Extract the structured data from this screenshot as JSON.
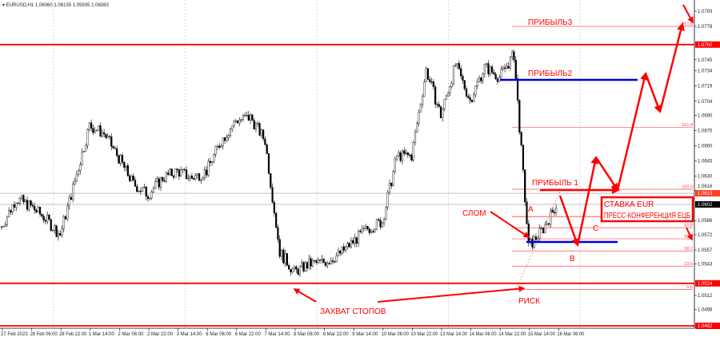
{
  "header": {
    "symbol": "EURUSD,H1",
    "ohlc": "1.06060 1.06135 1.05935 1.06083"
  },
  "colors": {
    "bull": "#ffffff",
    "bear": "#000000",
    "annotation": "#ff0000",
    "target_line": "#0000dd",
    "fib": "#ff5050",
    "grid": "#c0c0c0"
  },
  "chart_data": {
    "type": "candlestick",
    "title": "EURUSD,H1",
    "timeframe": "H1",
    "ylim": [
      1.0482,
      1.0793
    ],
    "grid": true,
    "y_ticks": [
      "1.0793",
      "1.0778",
      "1.0745",
      "1.0734",
      "1.0719",
      "1.0704",
      "1.0690",
      "1.0675",
      "1.0660",
      "1.0645",
      "1.0630",
      "1.0616",
      "1.0586",
      "1.0572",
      "1.0557",
      "1.0543",
      "1.0512",
      "1.0498"
    ],
    "price_labels": [
      {
        "text": "1.0760",
        "price": 1.076,
        "color": "#ff0000"
      },
      {
        "text": "1.0613",
        "price": 1.0613,
        "color": "#ff4020"
      },
      {
        "text": "1.0602",
        "price": 1.0602,
        "color": "#000000"
      },
      {
        "text": "1.0524",
        "price": 1.0524,
        "color": "#ff0000"
      },
      {
        "text": "1.0482",
        "price": 1.0482,
        "color": "#ff0000"
      }
    ],
    "x_ticks": [
      "27 Feb 2023",
      "28 Feb 06:00",
      "28 Feb 22:00",
      "1 Mar 14:00",
      "2 Mar 06:00",
      "2 Mar 22:00",
      "3 Mar 14:00",
      "6 Mar 06:00",
      "6 Mar 22:00",
      "7 Mar 14:00",
      "8 Mar 06:00",
      "8 Mar 22:00",
      "9 Mar 14:00",
      "10 Mar 06:00",
      "10 Mar 22:00",
      "13 Mar 14:00",
      "14 Mar 06:00",
      "14 Mar 22:00",
      "15 Mar 14:00",
      "16 Mar 06:00"
    ],
    "approx_closes_8h": [
      1.058,
      1.0608,
      1.06,
      1.0588,
      1.0572,
      1.0625,
      1.068,
      1.0672,
      1.0648,
      1.0622,
      1.0612,
      1.0628,
      1.0635,
      1.0628,
      1.0635,
      1.0665,
      1.0685,
      1.0688,
      1.0665,
      1.0555,
      1.0535,
      1.0543,
      1.0545,
      1.0552,
      1.0565,
      1.0578,
      1.0585,
      1.065,
      1.065,
      1.0735,
      1.069,
      1.074,
      1.0705,
      1.0738,
      1.0728,
      1.075,
      1.056,
      1.0578,
      1.0605
    ],
    "horizontal_levels": [
      1.076,
      1.0524,
      1.0482
    ],
    "fib_levels": [
      {
        "label": "261.8",
        "price": 1.0778
      },
      {
        "label": "161.8",
        "price": 1.0678
      },
      {
        "label": "100.0",
        "price": 1.0617
      },
      {
        "label": "61.8",
        "price": 1.0579
      },
      {
        "label": "50.0",
        "price": 1.0568
      },
      {
        "label": "38.2",
        "price": 1.0556
      },
      {
        "label": "23.6",
        "price": 1.0541
      },
      {
        "label": "0.0",
        "price": 1.0518
      }
    ],
    "targets": [
      {
        "label": "ПРИБЫЛЬ3",
        "price": 1.0778
      },
      {
        "label": "ПРИБЫЛЬ2",
        "price": 1.0724
      },
      {
        "label": "ПРИБЫЛЬ 1",
        "price": 1.0618
      }
    ],
    "support_line": 1.0568
  },
  "annotations": {
    "profit3": "ПРИБЫЛЬ3",
    "profit2": "ПРИБЫЛЬ2",
    "profit1": "ПРИБЫЛЬ 1",
    "break": "СЛОМ",
    "risk": "РИСК",
    "stop_hunt": "ЗАХВАТ СТОПОВ",
    "wave_a": "A",
    "wave_b": "B",
    "wave_c": "C",
    "box_line1": "СТАВКА EUR",
    "box_line2": "ПРЕСС-КОНФЕРЕНЦИЯ ЕЦБ"
  }
}
